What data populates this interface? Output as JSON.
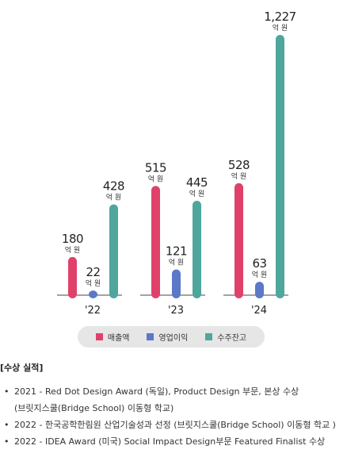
{
  "chart_data": {
    "type": "bar",
    "categories": [
      "'22",
      "'23",
      "'24"
    ],
    "unit_label": "억 원",
    "ylim": [
      0,
      1227
    ],
    "grid": false,
    "legend_position": "bottom",
    "series": [
      {
        "name": "매출액",
        "color": "#e0416a",
        "values": [
          180,
          515,
          528
        ],
        "labels": [
          "180",
          "515",
          "528"
        ]
      },
      {
        "name": "영업이익",
        "color": "#5b78c9",
        "values": [
          22,
          121,
          63
        ],
        "labels": [
          "22",
          "121",
          "63"
        ]
      },
      {
        "name": "수주잔고",
        "color": "#4fa69d",
        "values": [
          428,
          445,
          1227
        ],
        "labels": [
          "428",
          "445",
          "1,227"
        ]
      }
    ]
  },
  "awards": {
    "title": "[수상 실적]",
    "items": [
      {
        "line1": "2021 - Red Dot Design Award (독일), Product Design 부문, 본상 수상",
        "line2": "(브릿지스쿨(Bridge School) 이동형 학교)"
      },
      {
        "line1": "2022 - 한국공학한림원 산업기술성과 선정 (브릿지스쿨(Bridge School) 이동형 학교 )",
        "line2": ""
      },
      {
        "line1": "2022 - IDEA Award (미국) Social Impact Design부문 Featured Finalist 수상",
        "line2": ""
      }
    ]
  }
}
